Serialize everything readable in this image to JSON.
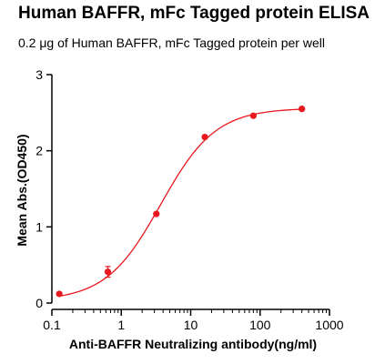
{
  "title": "Human BAFFR,  mFc Tagged protein ELISA",
  "subtitle": "0.2 μg of Human BAFFR, mFc Tagged protein per well",
  "chart_data": {
    "type": "scatter",
    "xlabel": "Anti-BAFFR Neutralizing antibody(ng/ml)",
    "ylabel": "Mean Abs.(OD450)",
    "xscale": "log",
    "xlim": [
      0.1,
      1000
    ],
    "ylim": [
      0,
      3
    ],
    "x_ticks": [
      0.1,
      1,
      10,
      100,
      1000
    ],
    "x_tick_labels": [
      "0.1",
      "1",
      "10",
      "100",
      "1000"
    ],
    "y_ticks": [
      0,
      1,
      2,
      3
    ],
    "y_tick_labels": [
      "0",
      "1",
      "2",
      "3"
    ],
    "grid": false,
    "legend": "none",
    "color": "#e8191f",
    "series": [
      {
        "x": [
          0.128,
          0.64,
          3.2,
          16,
          80,
          400
        ],
        "y": [
          0.12,
          0.41,
          1.17,
          2.18,
          2.46,
          2.55
        ],
        "error": [
          0.02,
          0.07,
          0.02,
          0.02,
          0.02,
          0.02
        ]
      }
    ],
    "fit": {
      "model": "4PL",
      "bottom": 0.03,
      "top": 2.56,
      "ec50": 3.7,
      "hill": 1.1,
      "x_range": [
        0.128,
        400
      ]
    }
  }
}
